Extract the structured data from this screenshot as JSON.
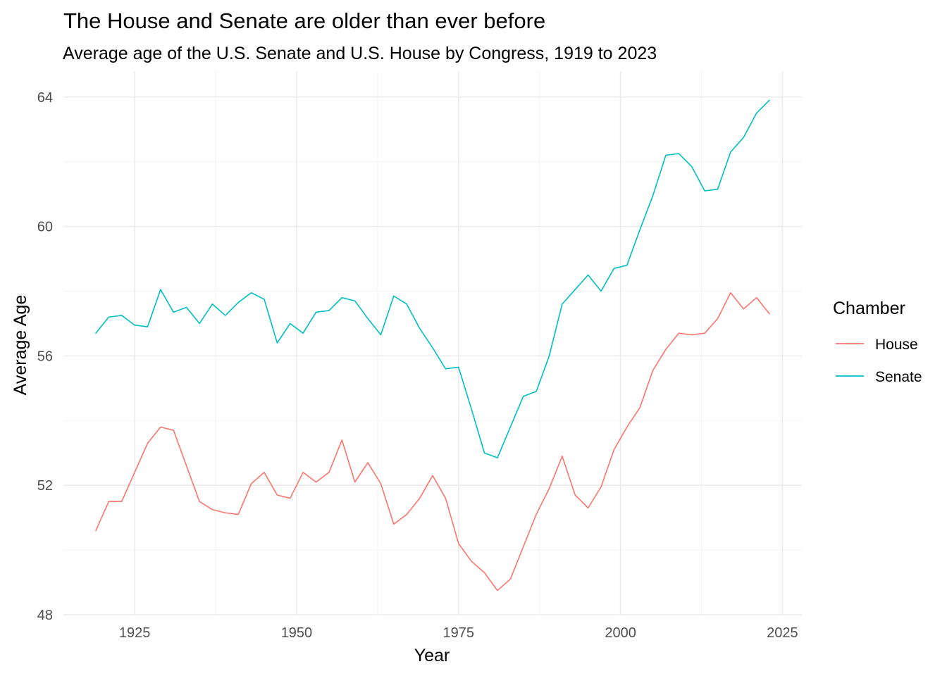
{
  "chart_data": {
    "type": "line",
    "title": "The House and Senate are older than ever before",
    "subtitle": "Average age of the U.S. Senate and U.S. House by Congress, 1919 to 2023",
    "xlabel": "Year",
    "ylabel": "Average Age",
    "xlim": [
      1914,
      2028
    ],
    "ylim": [
      48,
      64.8
    ],
    "x_ticks": [
      1925,
      1950,
      1975,
      2000,
      2025
    ],
    "y_ticks": [
      48,
      52,
      56,
      60,
      64
    ],
    "grid": true,
    "legend": {
      "title": "Chamber",
      "placement": "right"
    },
    "x": [
      1919,
      1921,
      1923,
      1925,
      1927,
      1929,
      1931,
      1933,
      1935,
      1937,
      1939,
      1941,
      1943,
      1945,
      1947,
      1949,
      1951,
      1953,
      1955,
      1957,
      1959,
      1961,
      1963,
      1965,
      1967,
      1969,
      1971,
      1973,
      1975,
      1977,
      1979,
      1981,
      1983,
      1985,
      1987,
      1989,
      1991,
      1993,
      1995,
      1997,
      1999,
      2001,
      2003,
      2005,
      2007,
      2009,
      2011,
      2013,
      2015,
      2017,
      2019,
      2021,
      2023
    ],
    "series": [
      {
        "name": "House",
        "color": "#f8766d",
        "values": [
          50.6,
          51.5,
          51.5,
          52.4,
          53.3,
          53.8,
          53.7,
          52.6,
          51.5,
          51.25,
          51.15,
          51.1,
          52.05,
          52.4,
          51.7,
          51.6,
          52.4,
          52.1,
          52.4,
          53.4,
          52.1,
          52.7,
          52.05,
          50.8,
          51.1,
          51.6,
          52.3,
          51.6,
          50.2,
          49.65,
          49.3,
          48.75,
          49.1,
          50.1,
          51.1,
          51.9,
          52.9,
          51.7,
          51.3,
          51.95,
          53.1,
          53.8,
          54.4,
          55.55,
          56.2,
          56.7,
          56.65,
          56.7,
          57.15,
          57.95,
          57.45,
          57.8,
          57.3
        ]
      },
      {
        "name": "Senate",
        "color": "#00bfc4",
        "values": [
          56.7,
          57.2,
          57.25,
          56.95,
          56.9,
          58.05,
          57.35,
          57.5,
          57.0,
          57.6,
          57.25,
          57.65,
          57.95,
          57.75,
          56.4,
          57.0,
          56.7,
          57.35,
          57.4,
          57.8,
          57.7,
          57.15,
          56.65,
          57.85,
          57.6,
          56.85,
          56.25,
          55.6,
          55.65,
          54.35,
          53.0,
          52.85,
          53.8,
          54.75,
          54.9,
          56.0,
          57.6,
          58.05,
          58.5,
          58.0,
          58.7,
          58.8,
          59.9,
          60.95,
          62.2,
          62.25,
          61.85,
          61.1,
          61.15,
          62.3,
          62.75,
          63.5,
          63.9
        ]
      }
    ]
  }
}
